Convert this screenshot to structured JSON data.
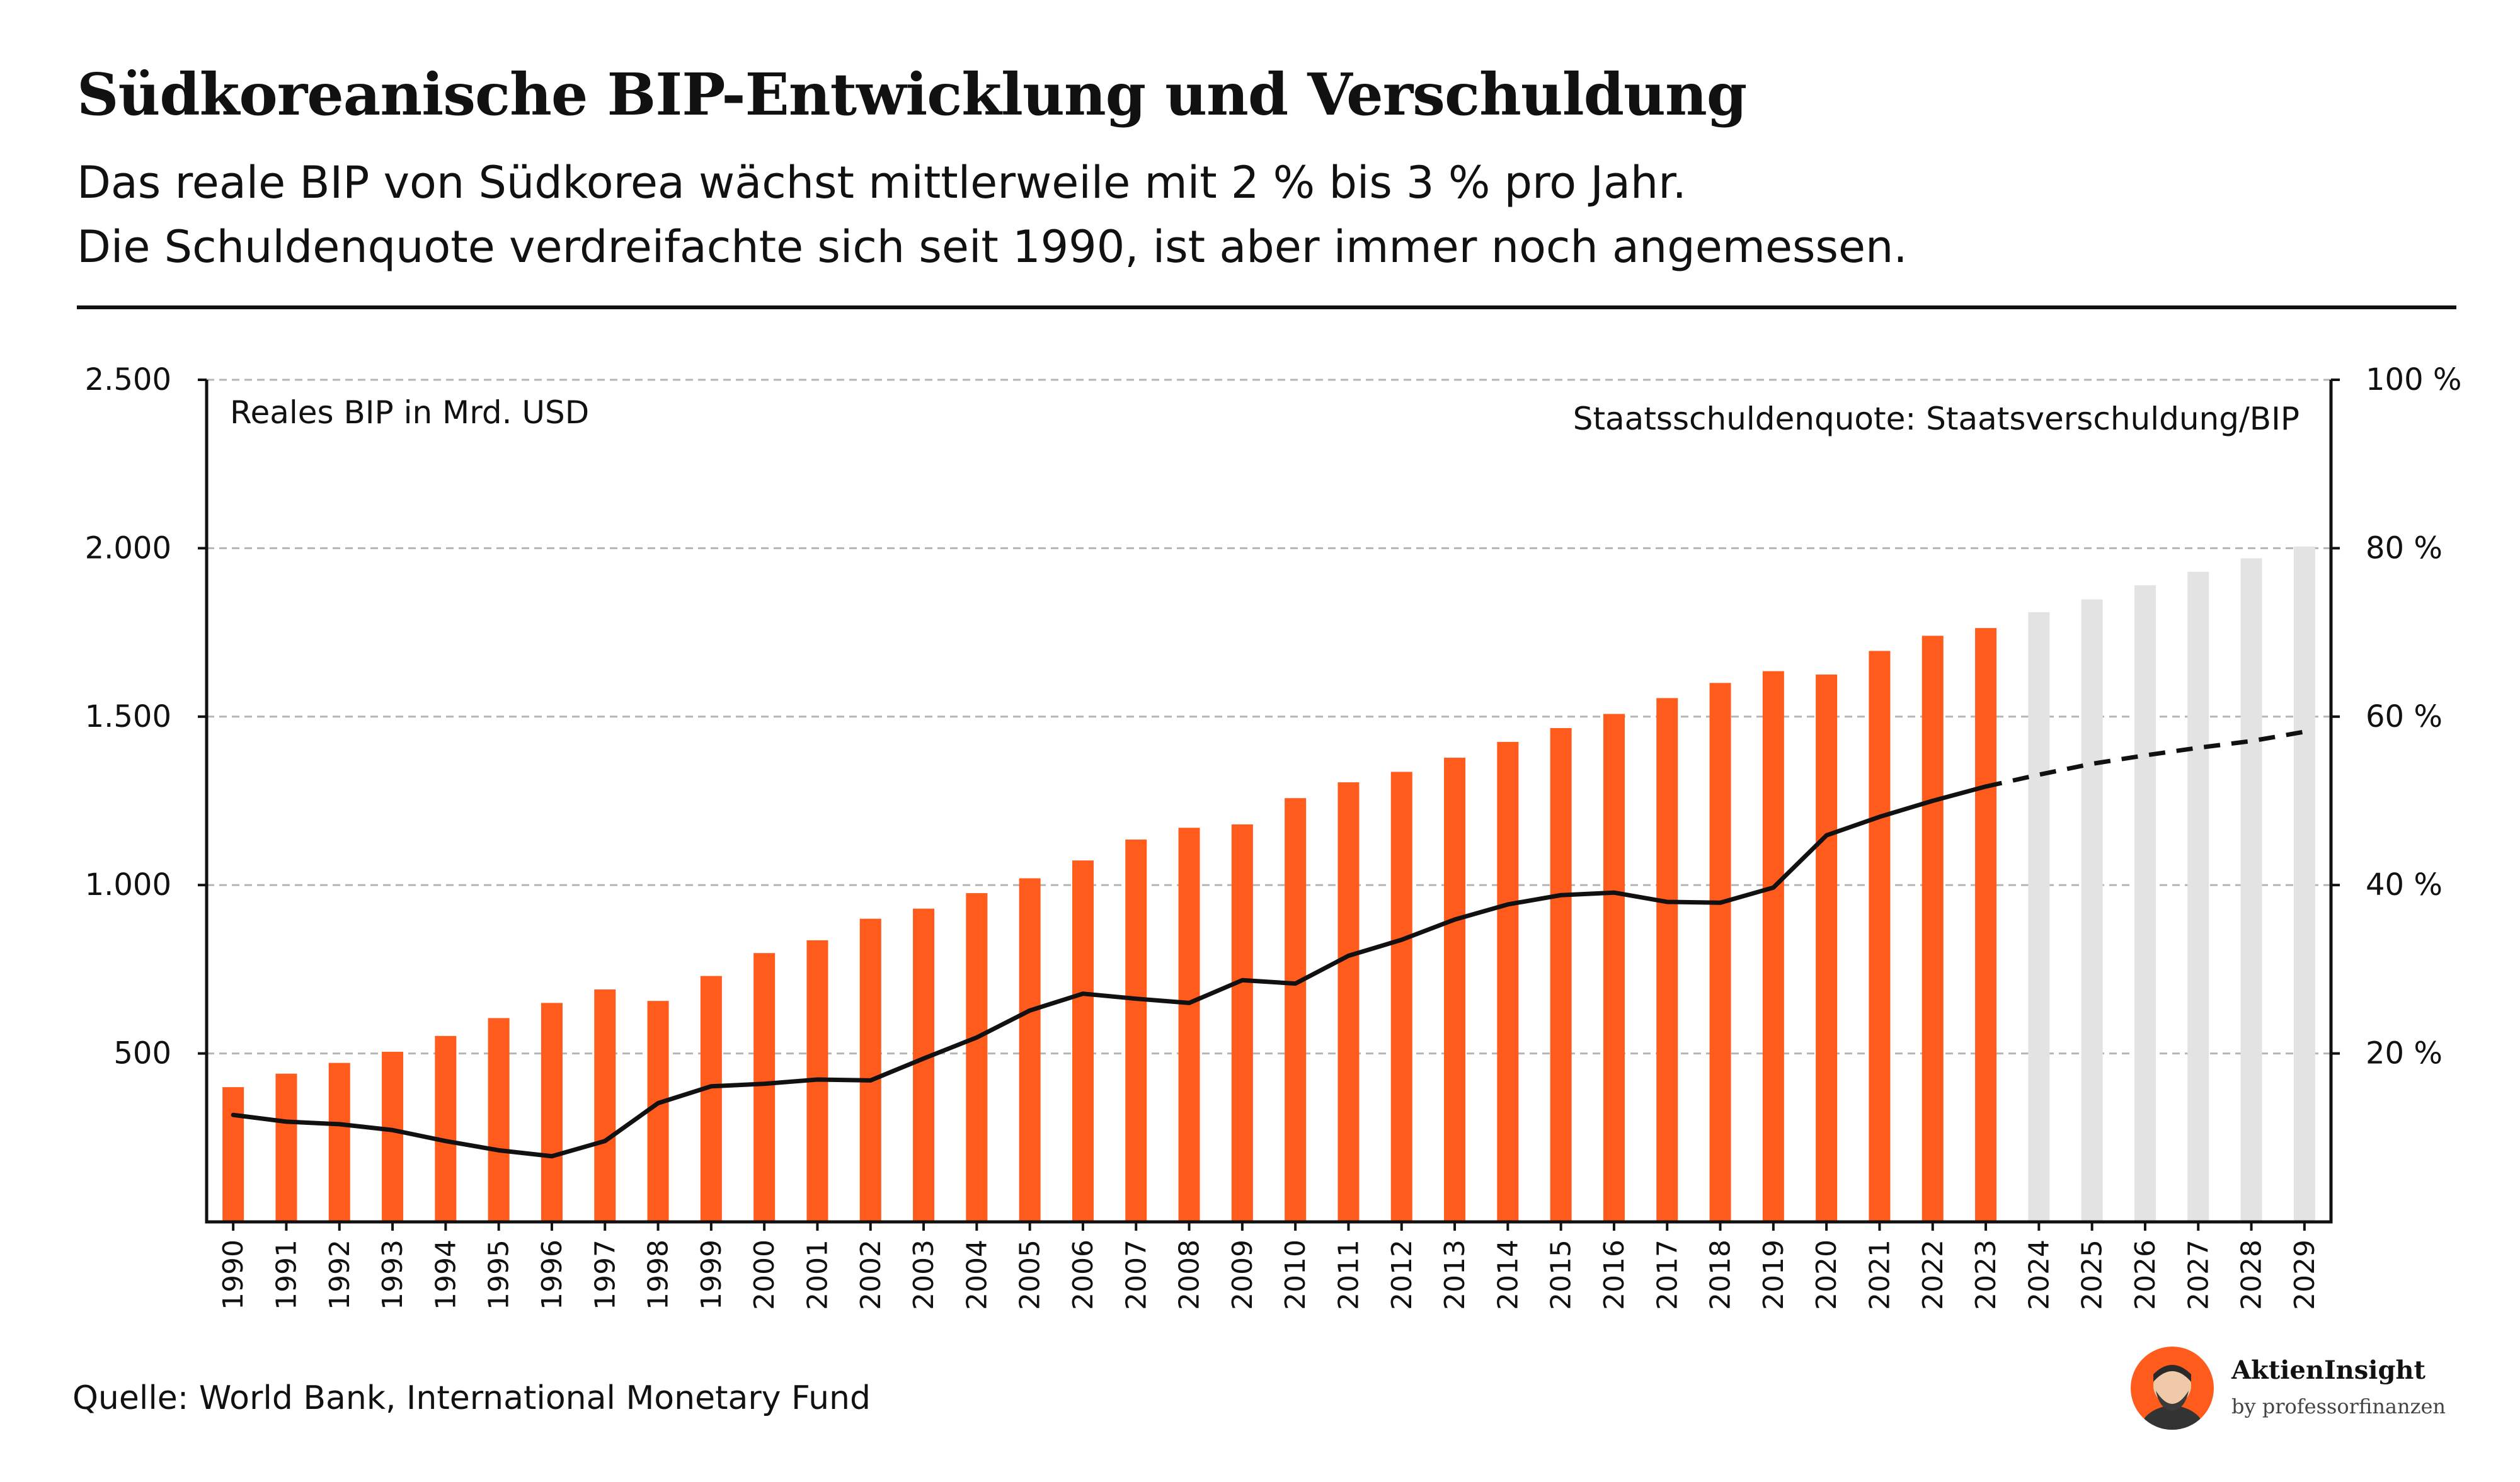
{
  "header": {
    "title": "Südkoreanische BIP-Entwicklung und Verschuldung",
    "subtitle_line1": "Das reale BIP von Südkorea wächst mittlerweile mit 2 % bis 3 % pro Jahr.",
    "subtitle_line2": "Die Schuldenquote verdreifachte sich seit 1990, ist aber immer noch angemessen."
  },
  "footer": {
    "source": "Quelle: World Bank, International Monetary Fund",
    "brand_name": "AktienInsight",
    "brand_sub": "by professorfinanzen"
  },
  "colors": {
    "bar_actual": "#ff5b1d",
    "bar_forecast": "#e3e3e3",
    "line": "#111111",
    "grid": "#b5b5b5"
  },
  "chart_data": {
    "type": "bar",
    "left_axis_label": "Reales BIP in Mrd. USD",
    "right_axis_label": "Staatsschuldenquote: Staatsverschuldung/BIP",
    "ylim_left": [
      0,
      2500
    ],
    "ylim_right": [
      0,
      100
    ],
    "yticks_left": [
      500,
      1000,
      1500,
      2000,
      2500
    ],
    "yticks_left_labels": [
      "500",
      "1.000",
      "1.500",
      "2.000",
      "2.500"
    ],
    "yticks_right": [
      20,
      40,
      60,
      80,
      100
    ],
    "yticks_right_labels": [
      "20 %",
      "40 %",
      "60 %",
      "80 %",
      "100 %"
    ],
    "grid": true,
    "categories": [
      "1990",
      "1991",
      "1992",
      "1993",
      "1994",
      "1995",
      "1996",
      "1997",
      "1998",
      "1999",
      "2000",
      "2001",
      "2002",
      "2003",
      "2004",
      "2005",
      "2006",
      "2007",
      "2008",
      "2009",
      "2010",
      "2011",
      "2012",
      "2013",
      "2014",
      "2015",
      "2016",
      "2017",
      "2018",
      "2019",
      "2020",
      "2021",
      "2022",
      "2023",
      "2024",
      "2025",
      "2026",
      "2027",
      "2028",
      "2029"
    ],
    "forecast_from_index": 34,
    "series": [
      {
        "kind": "bar",
        "values": [
          400,
          440,
          472,
          505,
          552,
          605,
          650,
          690,
          656,
          730,
          798,
          836,
          900,
          930,
          976,
          1020,
          1073,
          1135,
          1170,
          1180,
          1258,
          1305,
          1336,
          1378,
          1425,
          1466,
          1508,
          1555,
          1600,
          1635,
          1625,
          1695,
          1740,
          1763,
          1810,
          1848,
          1890,
          1930,
          1970,
          2005
        ]
      },
      {
        "kind": "line",
        "axis": "right",
        "values": [
          12.7,
          11.9,
          11.6,
          10.9,
          9.6,
          8.5,
          7.8,
          9.6,
          14.1,
          16.1,
          16.4,
          16.9,
          16.8,
          19.4,
          21.9,
          25.1,
          27.1,
          26.5,
          26.0,
          28.7,
          28.3,
          31.6,
          33.5,
          35.9,
          37.7,
          38.8,
          39.1,
          38.0,
          37.9,
          39.7,
          45.9,
          48.1,
          50.0,
          51.7,
          53.1,
          54.4,
          55.4,
          56.3,
          57.1,
          58.2
        ]
      }
    ]
  }
}
